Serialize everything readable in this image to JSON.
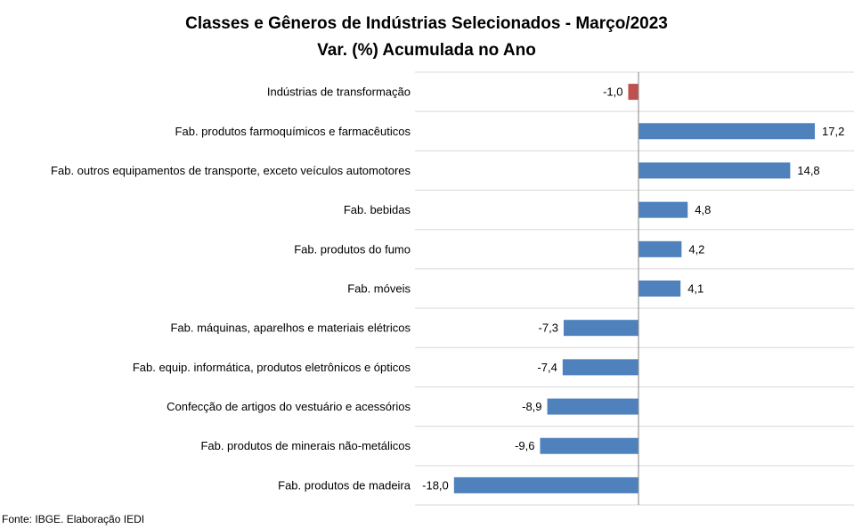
{
  "chart_data": {
    "type": "bar",
    "orientation": "horizontal",
    "title": "Classes e Gêneros de Indústrias Selecionados - Março/2023",
    "subtitle": "Var. (%) Acumulada no Ano",
    "categories": [
      "Indústrias de transformação",
      "Fab. produtos farmoquímicos e farmacêuticos",
      "Fab. outros equipamentos de transporte, exceto veículos automotores",
      "Fab. bebidas",
      "Fab. produtos do fumo",
      "Fab. móveis",
      "Fab. máquinas, aparelhos e materiais elétricos",
      "Fab. equip. informática, produtos eletrônicos e ópticos",
      "Confecção de artigos do vestuário e acessórios",
      "Fab. produtos de minerais não-metálicos",
      "Fab. produtos de madeira"
    ],
    "values": [
      -1.0,
      17.2,
      14.8,
      4.8,
      4.2,
      4.1,
      -7.3,
      -7.4,
      -8.9,
      -9.6,
      -18.0
    ],
    "value_labels": [
      "-1,0",
      "17,2",
      "14,8",
      "4,8",
      "4,2",
      "4,1",
      "-7,3",
      "-7,4",
      "-8,9",
      "-9,6",
      "-18,0"
    ],
    "highlight_category": "Indústrias de transformação",
    "xlim": [
      -18.0,
      20.0
    ],
    "grid": true,
    "legend": "none",
    "colors": {
      "default_bar": "#4f81bd",
      "highlight_bar": "#c0504d",
      "gridline": "#d9d9d9",
      "axis": "#868686"
    }
  },
  "source": "Fonte: IBGE. Elaboração IEDI"
}
